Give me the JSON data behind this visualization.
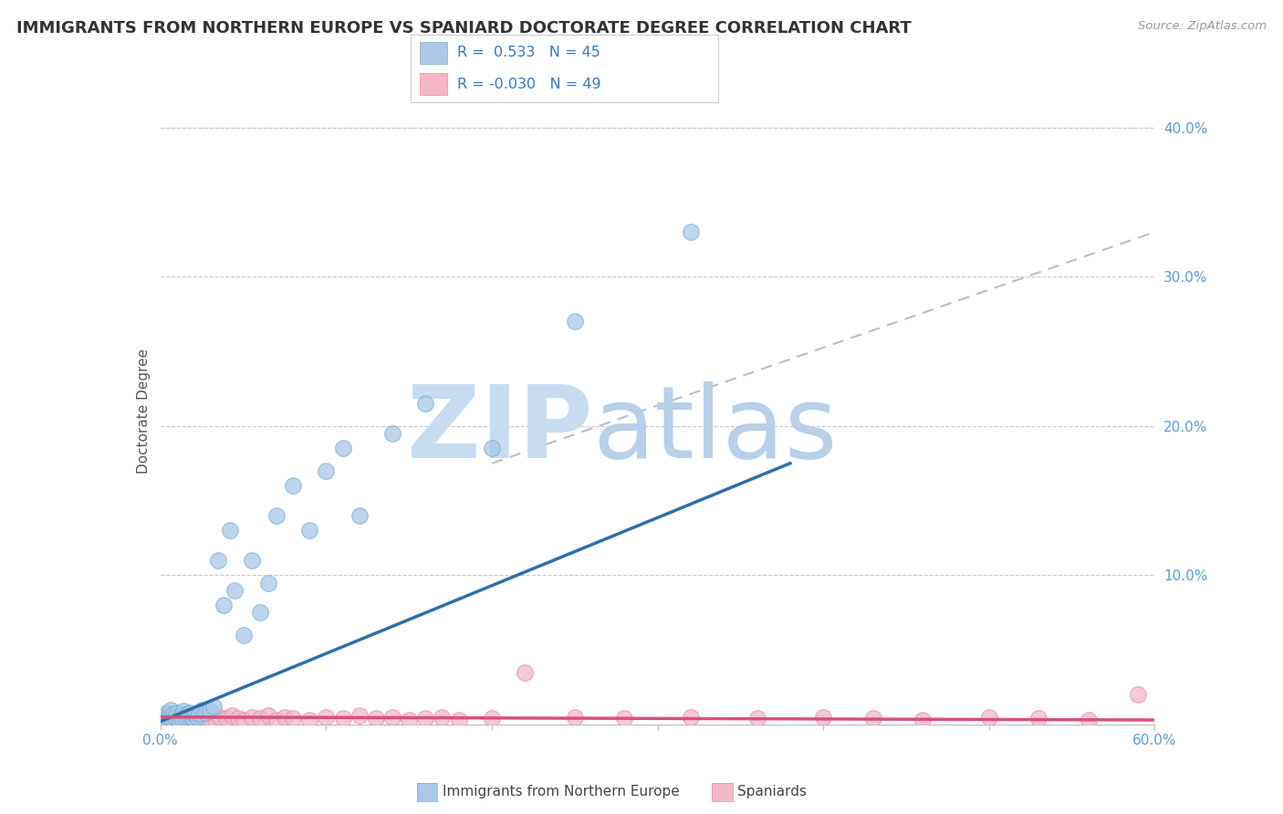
{
  "title": "IMMIGRANTS FROM NORTHERN EUROPE VS SPANIARD DOCTORATE DEGREE CORRELATION CHART",
  "source": "Source: ZipAtlas.com",
  "ylabel": "Doctorate Degree",
  "xlabel": "",
  "xlim": [
    0.0,
    0.6
  ],
  "ylim": [
    0.0,
    0.42
  ],
  "legend_R1": "0.533",
  "legend_N1": "45",
  "legend_R2": "-0.030",
  "legend_N2": "49",
  "blue_color": "#aac8e8",
  "blue_edge_color": "#7bafd4",
  "pink_color": "#f4b8c8",
  "pink_edge_color": "#e090a8",
  "blue_line_color": "#2c6fad",
  "pink_line_color": "#d9507a",
  "dashed_line_color": "#b0b8c0",
  "background_color": "#ffffff",
  "grid_color": "#c8c8d0",
  "blue_scatter_x": [
    0.002,
    0.003,
    0.004,
    0.005,
    0.006,
    0.007,
    0.008,
    0.009,
    0.01,
    0.011,
    0.012,
    0.013,
    0.014,
    0.015,
    0.016,
    0.017,
    0.018,
    0.019,
    0.02,
    0.021,
    0.022,
    0.023,
    0.025,
    0.027,
    0.03,
    0.032,
    0.035,
    0.038,
    0.042,
    0.045,
    0.05,
    0.055,
    0.06,
    0.065,
    0.07,
    0.08,
    0.09,
    0.1,
    0.11,
    0.12,
    0.14,
    0.16,
    0.2,
    0.25,
    0.32
  ],
  "blue_scatter_y": [
    0.005,
    0.003,
    0.008,
    0.005,
    0.01,
    0.004,
    0.007,
    0.005,
    0.008,
    0.003,
    0.006,
    0.004,
    0.009,
    0.005,
    0.007,
    0.005,
    0.008,
    0.005,
    0.004,
    0.006,
    0.005,
    0.007,
    0.01,
    0.008,
    0.009,
    0.012,
    0.11,
    0.08,
    0.13,
    0.09,
    0.06,
    0.11,
    0.075,
    0.095,
    0.14,
    0.16,
    0.13,
    0.17,
    0.185,
    0.14,
    0.195,
    0.215,
    0.185,
    0.27,
    0.33
  ],
  "pink_scatter_x": [
    0.002,
    0.004,
    0.006,
    0.008,
    0.01,
    0.012,
    0.014,
    0.016,
    0.018,
    0.02,
    0.022,
    0.025,
    0.028,
    0.03,
    0.033,
    0.036,
    0.04,
    0.043,
    0.047,
    0.05,
    0.055,
    0.06,
    0.065,
    0.07,
    0.075,
    0.08,
    0.09,
    0.1,
    0.11,
    0.12,
    0.13,
    0.14,
    0.15,
    0.16,
    0.17,
    0.18,
    0.2,
    0.22,
    0.25,
    0.28,
    0.32,
    0.36,
    0.4,
    0.43,
    0.46,
    0.5,
    0.53,
    0.56,
    0.59
  ],
  "pink_scatter_y": [
    0.003,
    0.005,
    0.002,
    0.006,
    0.004,
    0.003,
    0.005,
    0.003,
    0.006,
    0.004,
    0.003,
    0.005,
    0.003,
    0.004,
    0.003,
    0.005,
    0.004,
    0.006,
    0.004,
    0.003,
    0.005,
    0.004,
    0.006,
    0.003,
    0.005,
    0.004,
    0.003,
    0.005,
    0.004,
    0.006,
    0.004,
    0.005,
    0.003,
    0.004,
    0.005,
    0.003,
    0.004,
    0.035,
    0.005,
    0.004,
    0.005,
    0.004,
    0.005,
    0.004,
    0.003,
    0.005,
    0.004,
    0.003,
    0.02
  ],
  "blue_line_x0": 0.0,
  "blue_line_y0": 0.002,
  "blue_line_x1": 0.38,
  "blue_line_y1": 0.175,
  "pink_line_x0": 0.0,
  "pink_line_y0": 0.005,
  "pink_line_x1": 0.6,
  "pink_line_y1": 0.003,
  "dash_line_x0": 0.2,
  "dash_line_y0": 0.175,
  "dash_line_x1": 0.6,
  "dash_line_y1": 0.33
}
